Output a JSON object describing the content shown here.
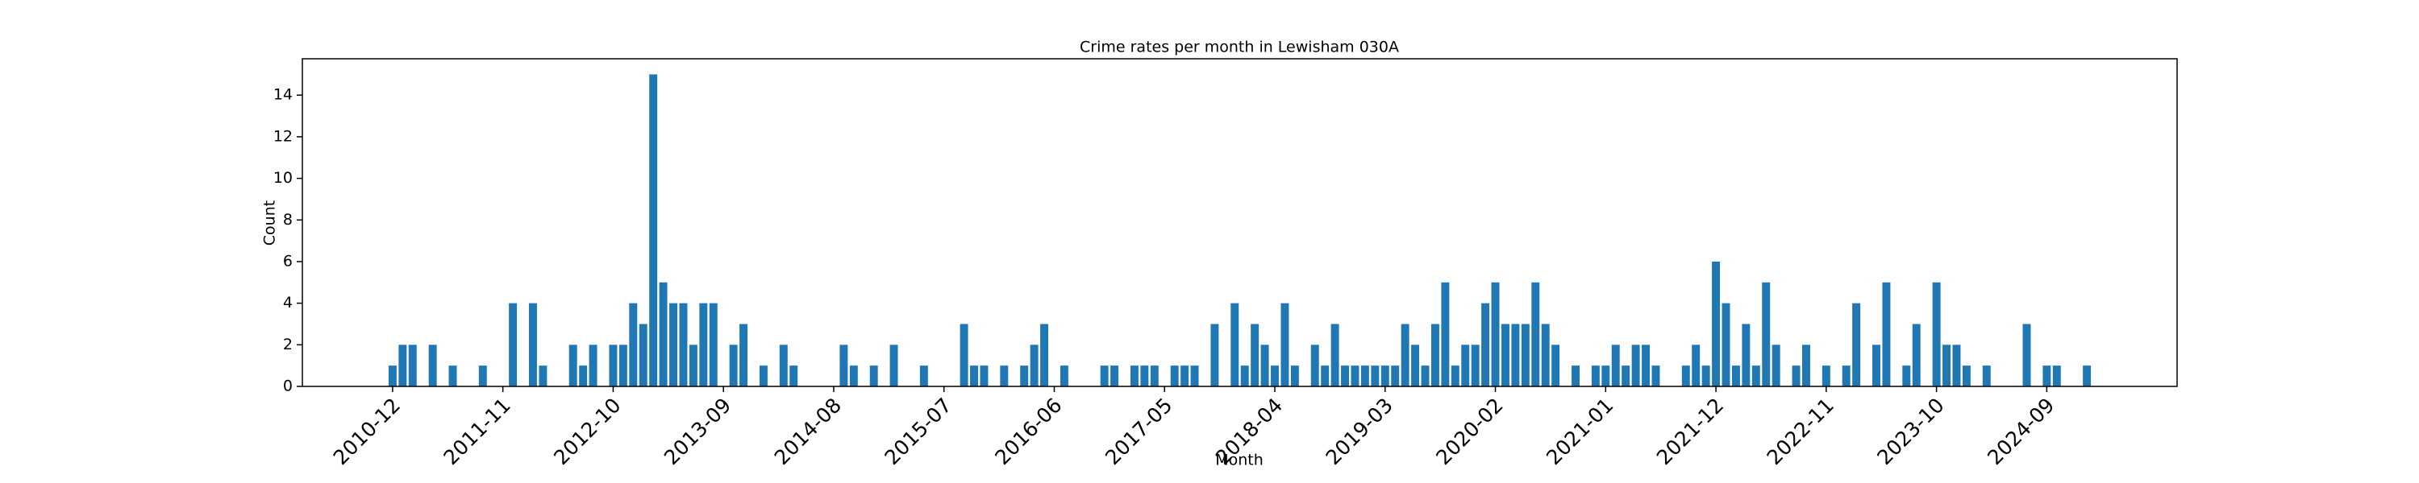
{
  "chart_data": {
    "type": "bar",
    "title": "Crime rates per month in Lewisham 030A",
    "xlabel": "Month",
    "ylabel": "Count",
    "color": "#1f77b4",
    "categories": [
      "2010-12",
      null,
      null,
      null,
      null,
      null,
      null,
      null,
      null,
      null,
      null,
      "2011-11",
      null,
      null,
      null,
      null,
      null,
      null,
      null,
      null,
      null,
      null,
      "2012-10",
      null,
      null,
      null,
      null,
      null,
      null,
      null,
      null,
      null,
      null,
      "2013-09",
      null,
      null,
      null,
      null,
      null,
      null,
      null,
      null,
      null,
      null,
      "2014-08",
      null,
      null,
      null,
      null,
      null,
      null,
      null,
      null,
      null,
      null,
      "2015-07",
      null,
      null,
      null,
      null,
      null,
      null,
      null,
      null,
      null,
      null,
      "2016-06",
      null,
      null,
      null,
      null,
      null,
      null,
      null,
      null,
      null,
      null,
      "2017-05",
      null,
      null,
      null,
      null,
      null,
      null,
      null,
      null,
      null,
      null,
      "2018-04",
      null,
      null,
      null,
      null,
      null,
      null,
      null,
      null,
      null,
      null,
      "2019-03",
      null,
      null,
      null,
      null,
      null,
      null,
      null,
      null,
      null,
      null,
      "2020-02",
      null,
      null,
      null,
      null,
      null,
      null,
      null,
      null,
      null,
      null,
      "2021-01",
      null,
      null,
      null,
      null,
      null,
      null,
      null,
      null,
      null,
      null,
      "2021-12",
      null,
      null,
      null,
      null,
      null,
      null,
      null,
      null,
      null,
      null,
      "2022-11",
      null,
      null,
      null,
      null,
      null,
      null,
      null,
      null,
      null,
      null,
      "2023-10",
      null,
      null,
      null,
      null,
      null,
      null,
      null,
      null,
      null,
      null,
      "2024-09",
      null,
      null,
      null,
      null
    ],
    "values": [
      1,
      2,
      2,
      0,
      2,
      0,
      1,
      0,
      0,
      1,
      0,
      0,
      4,
      0,
      4,
      1,
      0,
      0,
      2,
      1,
      2,
      0,
      2,
      2,
      4,
      3,
      15,
      5,
      4,
      4,
      2,
      4,
      4,
      0,
      2,
      3,
      0,
      1,
      0,
      2,
      1,
      0,
      0,
      0,
      0,
      2,
      1,
      0,
      1,
      0,
      2,
      0,
      0,
      1,
      0,
      0,
      0,
      3,
      1,
      1,
      0,
      1,
      0,
      1,
      2,
      3,
      0,
      1,
      0,
      0,
      0,
      1,
      1,
      0,
      1,
      1,
      1,
      0,
      1,
      1,
      1,
      0,
      3,
      0,
      4,
      1,
      3,
      2,
      1,
      4,
      1,
      0,
      2,
      1,
      3,
      1,
      1,
      1,
      1,
      1,
      1,
      3,
      2,
      1,
      3,
      5,
      1,
      2,
      2,
      4,
      5,
      3,
      3,
      3,
      5,
      3,
      2,
      0,
      1,
      0,
      1,
      1,
      2,
      1,
      2,
      2,
      1,
      0,
      0,
      1,
      2,
      1,
      6,
      4,
      1,
      3,
      1,
      5,
      2,
      0,
      1,
      2,
      0,
      1,
      0,
      1,
      4,
      0,
      2,
      5,
      0,
      1,
      3,
      0,
      5,
      2,
      2,
      1,
      0,
      1,
      0,
      0,
      0,
      3,
      0,
      1,
      1,
      0,
      0,
      1
    ],
    "ylim": [
      0,
      15.75
    ],
    "yticks": [
      0,
      2,
      4,
      6,
      8,
      10,
      12,
      14
    ],
    "grid": false
  }
}
